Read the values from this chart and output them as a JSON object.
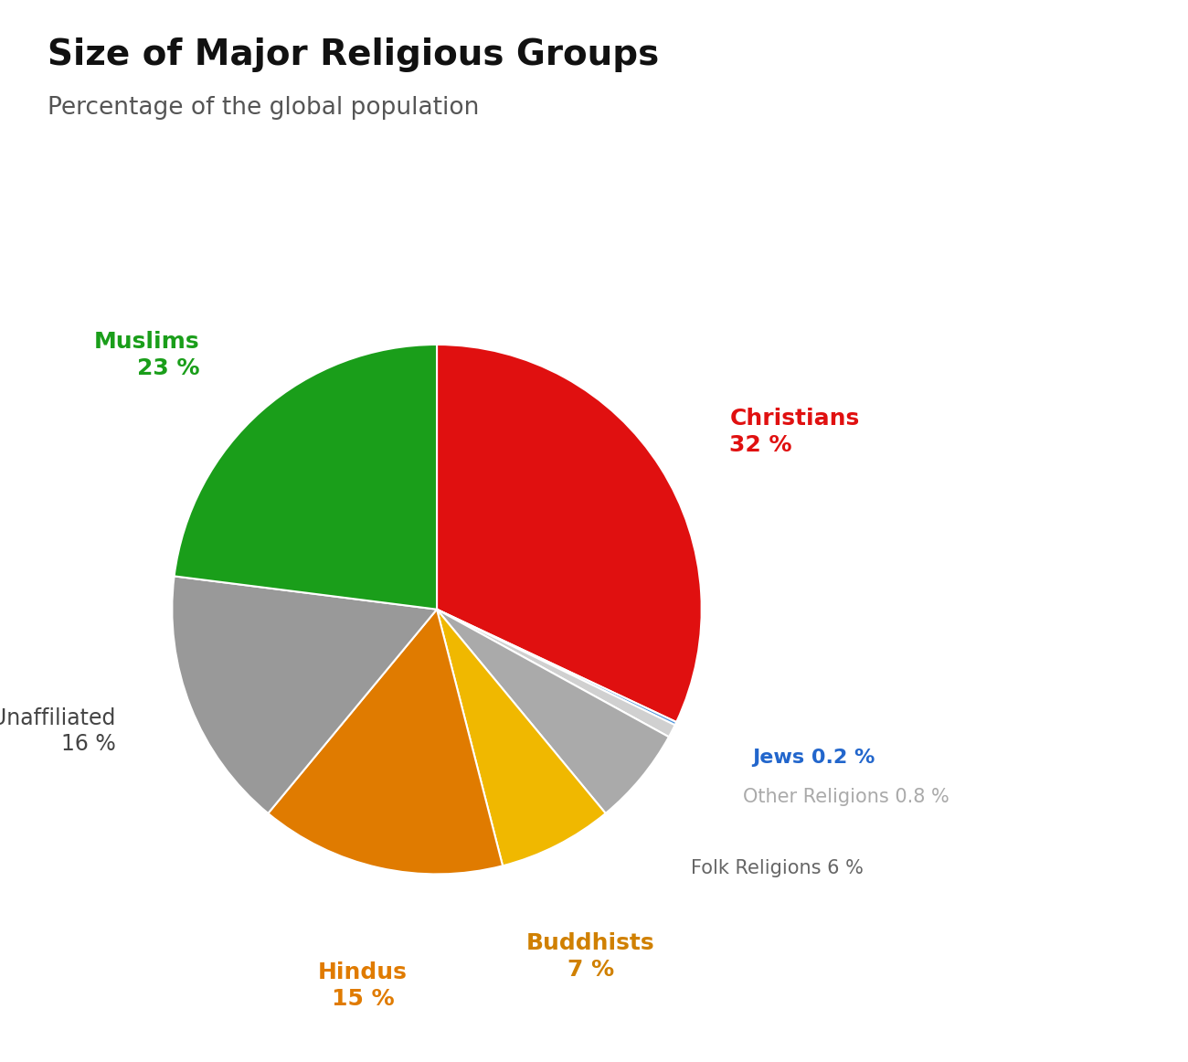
{
  "title": "Size of Major Religious Groups",
  "subtitle": "Percentage of the global population",
  "slices": [
    {
      "label": "Christians",
      "value": 32,
      "color": "#e01010",
      "text_color": "#e01010",
      "bold": true
    },
    {
      "label": "Jews",
      "value": 0.2,
      "color": "#5599dd",
      "text_color": "#2266cc",
      "bold": true
    },
    {
      "label": "Other Religions",
      "value": 0.8,
      "color": "#d0d0d0",
      "text_color": "#aaaaaa",
      "bold": false
    },
    {
      "label": "Folk Religions",
      "value": 6,
      "color": "#aaaaaa",
      "text_color": "#666666",
      "bold": false
    },
    {
      "label": "Buddhists",
      "value": 7,
      "color": "#f0b800",
      "text_color": "#d08000",
      "bold": true
    },
    {
      "label": "Hindus",
      "value": 15,
      "color": "#e07b00",
      "text_color": "#e07b00",
      "bold": true
    },
    {
      "label": "Unaffiliated",
      "value": 16,
      "color": "#999999",
      "text_color": "#444444",
      "bold": false
    },
    {
      "label": "Muslims",
      "value": 23,
      "color": "#1a9e1a",
      "text_color": "#1a9e1a",
      "bold": true
    }
  ],
  "startangle": 90,
  "background_color": "#ffffff",
  "title_fontsize": 28,
  "subtitle_fontsize": 19,
  "edge_color": "white",
  "edge_linewidth": 1.5
}
